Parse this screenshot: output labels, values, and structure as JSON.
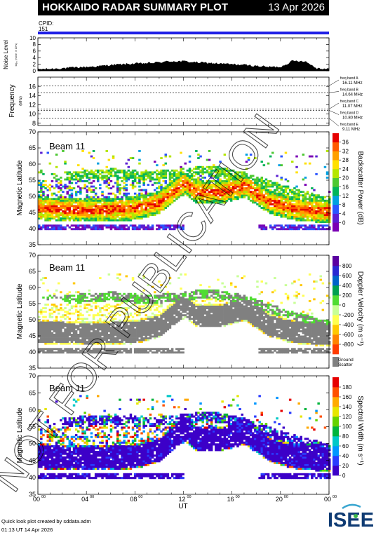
{
  "header": {
    "title": "HOKKAIDO RADAR SUMMARY PLOT",
    "date": "13 Apr 2026"
  },
  "cpid": {
    "label": "CPID:",
    "value": "151"
  },
  "footer": {
    "credit": "Quick look plot created by sddata.adm",
    "timestamp": "01:13 UT 14 Apr 2026",
    "logo": "ISEE"
  },
  "watermark": "NOT FOR PUBLICATION",
  "colors": {
    "cpid_bar": "#1f1fe6",
    "ground_scatter": "#808080"
  },
  "chart_data": [
    {
      "type": "area",
      "ylabel": "Noise Level",
      "ylabel_sub": "log₁₀ (noise, in 10^s)",
      "ylim": [
        0,
        10
      ],
      "yticks": [
        "0",
        "2",
        "4",
        "6",
        "8",
        "10"
      ],
      "x": [
        0,
        1,
        2,
        3,
        4,
        5,
        6,
        7,
        8,
        9,
        10,
        11,
        12,
        13,
        14,
        15,
        16,
        17,
        18,
        19,
        20,
        21,
        22,
        23,
        24
      ],
      "values": [
        0.5,
        0.6,
        0.8,
        1.0,
        1.2,
        1.4,
        1.8,
        2.0,
        2.2,
        2.3,
        2.6,
        2.9,
        2.9,
        2.6,
        2.4,
        2.2,
        2.0,
        1.8,
        1.5,
        1.2,
        1.2,
        3.0,
        3.0,
        0.8,
        0.6
      ]
    },
    {
      "type": "line",
      "ylabel": "Frequency",
      "ylabel_sub": "(MHz)",
      "ylim": [
        7.5,
        18
      ],
      "yticks": [
        "8",
        "10",
        "12",
        "14",
        "16"
      ],
      "bands": [
        {
          "label": "freq band A",
          "mhz_text": "16.11 MHz",
          "value": 16.11
        },
        {
          "label": "freq band B",
          "mhz_text": "14.64 MHz",
          "value": 14.64
        },
        {
          "label": "freq band C",
          "mhz_text": "11.07 MHz",
          "value": 11.07
        },
        {
          "label": "freq band D",
          "mhz_text": "10.80 MHz",
          "value": 10.8
        },
        {
          "label": "freq band E",
          "mhz_text": "9.11 MHz",
          "value": 9.11
        }
      ]
    },
    {
      "type": "heatmap",
      "beam": "Beam 11",
      "ylabel": "Magnetic Latitude",
      "ylim": [
        35,
        70
      ],
      "yticks": [
        "35",
        "40",
        "45",
        "50",
        "55",
        "60",
        "65",
        "70"
      ],
      "colorbar": {
        "label": "Backscatter Power (dB)",
        "ticks": [
          "0",
          "4",
          "8",
          "12",
          "16",
          "20",
          "24",
          "28",
          "32",
          "36"
        ],
        "colors": [
          "#7a00b4",
          "#5a1ed2",
          "#2a55ff",
          "#00a0e0",
          "#00b45a",
          "#4cc832",
          "#b4e600",
          "#ffe000",
          "#ffa000",
          "#ff5a00",
          "#e60000"
        ]
      },
      "data_summary": {
        "main_band_lat": [
          [
            0,
            46
          ],
          [
            4,
            45.5
          ],
          [
            8,
            46
          ],
          [
            10,
            48
          ],
          [
            12,
            54
          ],
          [
            13,
            51
          ],
          [
            15,
            51
          ],
          [
            17,
            53
          ],
          [
            19,
            48
          ],
          [
            21,
            46
          ],
          [
            24,
            45
          ]
        ],
        "upper_band_lat": [
          [
            2,
            56
          ],
          [
            6,
            57
          ],
          [
            9,
            56
          ],
          [
            12,
            57
          ],
          [
            14,
            58
          ],
          [
            17,
            56
          ],
          [
            20,
            52
          ],
          [
            24,
            48
          ]
        ]
      }
    },
    {
      "type": "heatmap",
      "beam": "Beam 11",
      "ylabel": "Magnetic Latitude",
      "ylim": [
        35,
        70
      ],
      "yticks": [
        "35",
        "40",
        "45",
        "50",
        "55",
        "60",
        "65",
        "70"
      ],
      "colorbar": {
        "label": "Doppler Velocity (m s⁻¹)",
        "ticks": [
          "-800",
          "-600",
          "-400",
          "-200",
          "0",
          "200",
          "400",
          "600",
          "800"
        ],
        "colors": [
          "#ff3c00",
          "#ff8200",
          "#ffc800",
          "#ffff50",
          "#c8ff96",
          "#50dc32",
          "#00a050",
          "#0064c8",
          "#2828d2",
          "#5a00a0"
        ],
        "ground_label_1": "Ground",
        "ground_label_2": "Scatter"
      }
    },
    {
      "type": "heatmap",
      "beam": "Beam 11",
      "ylabel": "Magnetic Latitude",
      "ylim": [
        35,
        70
      ],
      "yticks": [
        "35",
        "40",
        "45",
        "50",
        "55",
        "60",
        "65",
        "70"
      ],
      "xlabel": "UT",
      "xlim": [
        0,
        24
      ],
      "xticks": [
        "00",
        "04",
        "08",
        "12",
        "16",
        "20",
        "00"
      ],
      "xtick_sup": "00",
      "colorbar": {
        "label": "Spectral Width (m s⁻¹)",
        "ticks": [
          "0",
          "20",
          "40",
          "60",
          "80",
          "100",
          "120",
          "140",
          "160",
          "180"
        ],
        "colors": [
          "#3c00c8",
          "#2a3cff",
          "#0096ff",
          "#00c8c8",
          "#00b43c",
          "#64d200",
          "#e6e600",
          "#ffaa00",
          "#ff5000",
          "#e60000"
        ]
      }
    }
  ]
}
